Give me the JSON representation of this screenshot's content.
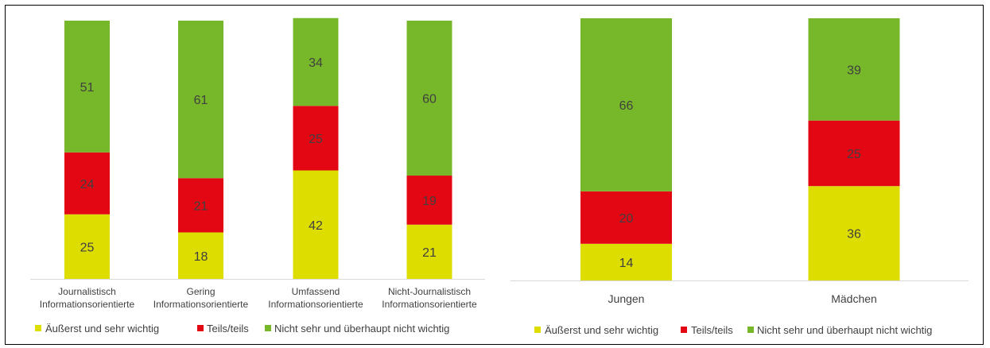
{
  "chart_data": [
    {
      "type": "bar",
      "stacked": true,
      "categories": [
        "Journalistisch Informationsorientierte",
        "Gering Informationsorientierte",
        "Umfassend Informationsorientierte",
        "Nicht-Journalistisch Informationsorientierte"
      ],
      "category_lines": [
        [
          "Journalistisch",
          "Informationsorientierte"
        ],
        [
          "Gering",
          "Informationsorientierte"
        ],
        [
          "Umfassend",
          "Informationsorientierte"
        ],
        [
          "Nicht-Journalistisch",
          "Informationsorientierte"
        ]
      ],
      "series": [
        {
          "name": "Äußerst und sehr wichtig",
          "color": "#dddd00",
          "values": [
            25,
            18,
            42,
            21
          ]
        },
        {
          "name": "Teils/teils",
          "color": "#e30613",
          "values": [
            24,
            21,
            25,
            19
          ]
        },
        {
          "name": "Nicht sehr und überhaupt nicht wichtig",
          "color": "#77b82a",
          "values": [
            51,
            61,
            34,
            60
          ]
        }
      ],
      "ylim": [
        0,
        100
      ],
      "grid": false,
      "legend": "bottom"
    },
    {
      "type": "bar",
      "stacked": true,
      "categories": [
        "Jungen",
        "Mädchen"
      ],
      "category_lines": [
        [
          "Jungen"
        ],
        [
          "Mädchen"
        ]
      ],
      "series": [
        {
          "name": "Äußerst und sehr wichtig",
          "color": "#dddd00",
          "values": [
            14,
            36
          ]
        },
        {
          "name": "Teils/teils",
          "color": "#e30613",
          "values": [
            20,
            25
          ]
        },
        {
          "name": "Nicht sehr und überhaupt nicht wichtig",
          "color": "#77b82a",
          "values": [
            66,
            39
          ]
        }
      ],
      "ylim": [
        0,
        100
      ],
      "grid": false,
      "legend": "bottom"
    }
  ]
}
